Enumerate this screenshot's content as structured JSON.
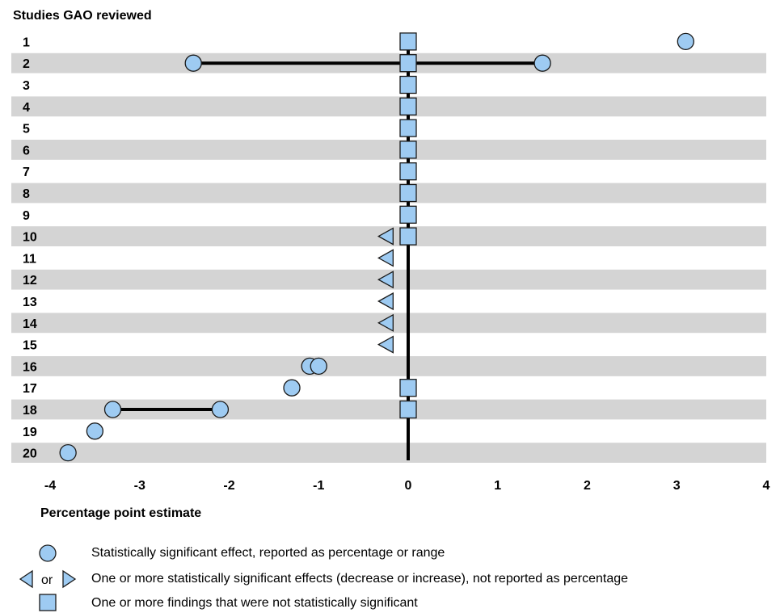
{
  "chart_data": {
    "type": "scatter",
    "title": "Studies GAO reviewed",
    "xlabel": "Percentage point estimate",
    "ylabel": "",
    "xlim": [
      -4,
      4
    ],
    "x_ticks": [
      "-4",
      "-3",
      "-2",
      "-1",
      "0",
      "1",
      "2",
      "3",
      "4"
    ],
    "categories": [
      "1",
      "2",
      "3",
      "4",
      "5",
      "6",
      "7",
      "8",
      "9",
      "10",
      "11",
      "12",
      "13",
      "14",
      "15",
      "16",
      "17",
      "18",
      "19",
      "20"
    ],
    "banded_rows": [
      "2",
      "4",
      "6",
      "8",
      "10",
      "12",
      "14",
      "16",
      "18",
      "20"
    ],
    "colors": {
      "marker_fill": "#9ecbf2",
      "marker_stroke": "#1a1a1a",
      "band": "#d4d4d4",
      "line": "#000000"
    },
    "series": [
      {
        "name": "Statistically significant effect, reported as percentage or range",
        "marker": "circle",
        "points": [
          {
            "study": "1",
            "x": 3.1
          },
          {
            "study": "2",
            "x": -2.4
          },
          {
            "study": "2",
            "x": 1.5
          },
          {
            "study": "16",
            "x": -1.1
          },
          {
            "study": "16",
            "x": -1.0
          },
          {
            "study": "17",
            "x": -1.3
          },
          {
            "study": "18",
            "x": -3.3
          },
          {
            "study": "18",
            "x": -2.1
          },
          {
            "study": "19",
            "x": -3.5
          },
          {
            "study": "20",
            "x": -3.8
          }
        ]
      },
      {
        "name": "One or more statistically significant effects (decrease or increase), not reported as percentage",
        "marker": "triangle",
        "points": [
          {
            "study": "10",
            "x": -0.25,
            "direction": "decrease"
          },
          {
            "study": "11",
            "x": -0.25,
            "direction": "decrease"
          },
          {
            "study": "12",
            "x": -0.25,
            "direction": "decrease"
          },
          {
            "study": "13",
            "x": -0.25,
            "direction": "decrease"
          },
          {
            "study": "14",
            "x": -0.25,
            "direction": "decrease"
          },
          {
            "study": "15",
            "x": -0.25,
            "direction": "decrease"
          }
        ]
      },
      {
        "name": "One or more findings that were not statistically significant",
        "marker": "square",
        "points": [
          {
            "study": "1",
            "x": 0
          },
          {
            "study": "2",
            "x": 0
          },
          {
            "study": "3",
            "x": 0
          },
          {
            "study": "4",
            "x": 0
          },
          {
            "study": "5",
            "x": 0
          },
          {
            "study": "6",
            "x": 0
          },
          {
            "study": "7",
            "x": 0
          },
          {
            "study": "8",
            "x": 0
          },
          {
            "study": "9",
            "x": 0
          },
          {
            "study": "10",
            "x": 0
          },
          {
            "study": "17",
            "x": 0
          },
          {
            "study": "18",
            "x": 0
          }
        ]
      }
    ],
    "ranges": [
      {
        "study": "2",
        "from": -2.4,
        "to": 1.5
      },
      {
        "study": "18",
        "from": -3.3,
        "to": -2.1
      }
    ],
    "zero_line": true
  },
  "legend": {
    "circle_label": "Statistically significant effect, reported as percentage or range",
    "triangle_label": "One or more statistically significant effects (decrease or increase), not reported as percentage",
    "triangle_or": "or",
    "square_label": "One or more findings that were not statistically significant"
  }
}
